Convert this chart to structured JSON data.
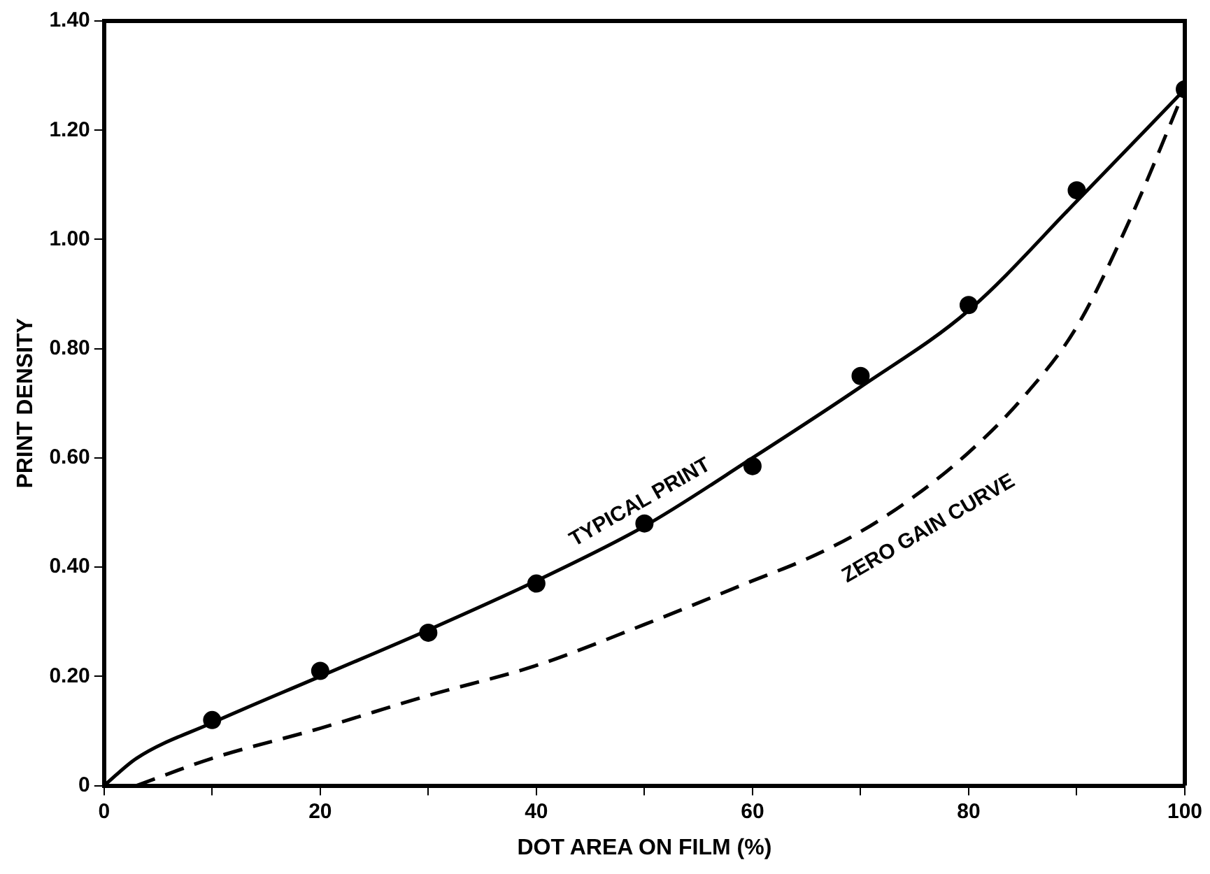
{
  "chart_data": {
    "type": "line",
    "xlabel": "DOT AREA ON FILM (%)",
    "ylabel": "PRINT DENSITY",
    "xlim": [
      0,
      100
    ],
    "ylim": [
      0,
      1.4
    ],
    "xticks": [
      0,
      {
        "value": 10,
        "label": null
      },
      20,
      {
        "value": 30,
        "label": null
      },
      40,
      {
        "value": 50,
        "label": null
      },
      60,
      {
        "value": 70,
        "label": null
      },
      80,
      {
        "value": 90,
        "label": null
      },
      100
    ],
    "yticks": [
      {
        "value": 0,
        "label": "0"
      },
      {
        "value": 0.2,
        "label": "0.20"
      },
      {
        "value": 0.4,
        "label": "0.40"
      },
      {
        "value": 0.6,
        "label": "0.60"
      },
      {
        "value": 0.8,
        "label": "0.80"
      },
      {
        "value": 1.0,
        "label": "1.00"
      },
      {
        "value": 1.2,
        "label": "1.20"
      },
      {
        "value": 1.4,
        "label": "1.40"
      }
    ],
    "grid": false,
    "legend": false,
    "series": [
      {
        "name": "TYPICAL PRINT",
        "color": "#000000",
        "line_style": "solid",
        "marker": "none",
        "x": [
          0,
          3,
          10,
          20,
          30,
          40,
          50,
          60,
          70,
          80,
          90,
          100
        ],
        "values": [
          0,
          0.05,
          0.115,
          0.2,
          0.285,
          0.375,
          0.475,
          0.6,
          0.73,
          0.87,
          1.07,
          1.275
        ]
      },
      {
        "type": "scatter",
        "color": "#000000",
        "marker": "circle",
        "x": [
          10,
          20,
          30,
          40,
          50,
          60,
          70,
          80,
          90,
          100
        ],
        "values": [
          0.12,
          0.21,
          0.28,
          0.37,
          0.48,
          0.585,
          0.75,
          0.88,
          1.09,
          1.275
        ]
      },
      {
        "name": "ZERO GAIN CURVE",
        "color": "#000000",
        "line_style": "dashed",
        "marker": "none",
        "x": [
          3,
          10,
          20,
          30,
          40,
          50,
          60,
          65,
          70,
          75,
          80,
          85,
          90,
          95,
          100
        ],
        "values": [
          0,
          0.05,
          0.105,
          0.165,
          0.22,
          0.295,
          0.375,
          0.415,
          0.465,
          0.53,
          0.61,
          0.71,
          0.84,
          1.04,
          1.275
        ]
      }
    ]
  }
}
